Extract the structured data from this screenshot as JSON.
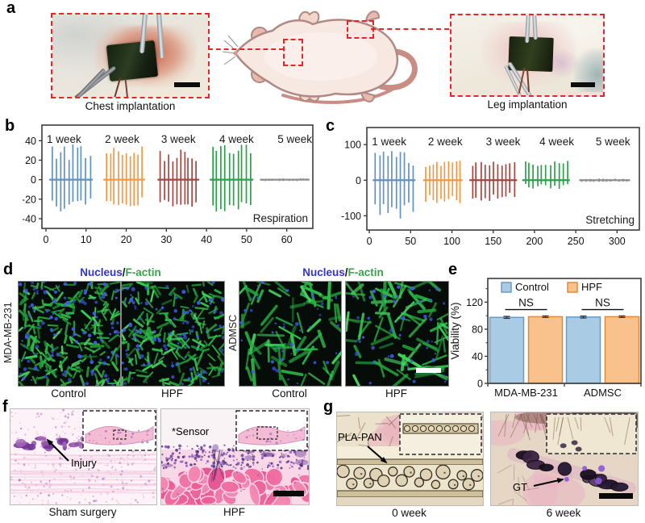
{
  "panels": {
    "a": {
      "label": "a",
      "chest_caption": "Chest implantation",
      "leg_caption": "Leg implantation"
    },
    "b": {
      "label": "b"
    },
    "c": {
      "label": "c"
    },
    "d": {
      "label": "d",
      "stain_title": {
        "nucleus": "Nucleus",
        "slash": "/",
        "factin": "F-actin"
      },
      "colors": {
        "nucleus": "#3434cc",
        "factin": "#3aa34a"
      },
      "cell_line_left": "MDA-MB-231",
      "cell_line_right": "ADMSC",
      "captions": [
        "Control",
        "HPF",
        "Control",
        "HPF"
      ]
    },
    "e": {
      "label": "e"
    },
    "f": {
      "label": "f",
      "annotations": {
        "injury": "Injury",
        "sensor": "*Sensor"
      },
      "caption_left": "Sham surgery",
      "caption_right": "HPF"
    },
    "g": {
      "label": "g",
      "annotations": {
        "pla_pan": "PLA-PAN",
        "gt": "GT"
      },
      "caption_left": "0 week",
      "caption_right": "6 week"
    }
  },
  "chart_data": [
    {
      "panel": "b",
      "type": "line",
      "corner_label": "Respiration",
      "xlim": [
        -1,
        66.5
      ],
      "ylim": [
        -50,
        56
      ],
      "xticks": [
        0,
        10,
        20,
        30,
        40,
        50,
        60
      ],
      "yticks": [
        -40,
        -20,
        0,
        20,
        40
      ],
      "week_labels": [
        "1 week",
        "2 week",
        "3 week",
        "4 week",
        "5 week"
      ],
      "week_label_x": [
        4.5,
        19,
        33,
        47.5,
        62
      ],
      "series": [
        {
          "name": "1 week",
          "color": "#5e93c5",
          "x_range": [
            1,
            11.5
          ],
          "spikes": 10,
          "amp_up": [
            20,
            38
          ],
          "amp_down": [
            18,
            34
          ]
        },
        {
          "name": "2 week",
          "color": "#f5983f",
          "x_range": [
            14.5,
            24.5
          ],
          "spikes": 10,
          "amp_up": [
            24,
            34
          ],
          "amp_down": [
            18,
            28
          ]
        },
        {
          "name": "3 week",
          "color": "#a8453f",
          "x_range": [
            28,
            38
          ],
          "spikes": 10,
          "amp_up": [
            18,
            33
          ],
          "amp_down": [
            20,
            30
          ]
        },
        {
          "name": "4 week",
          "color": "#27a348",
          "x_range": [
            41,
            51.5
          ],
          "spikes": 10,
          "amp_up": [
            26,
            38
          ],
          "amp_down": [
            22,
            33
          ]
        },
        {
          "name": "5 week",
          "color": "#8f8f8f",
          "x_range": [
            53.5,
            65.5
          ],
          "spikes": 14,
          "amp_up": [
            0.5,
            1.5
          ],
          "amp_down": [
            0.5,
            1.5
          ]
        }
      ]
    },
    {
      "panel": "c",
      "type": "line",
      "corner_label": "Stretching",
      "xlim": [
        -3,
        327
      ],
      "ylim": [
        -140,
        148
      ],
      "xticks": [
        0,
        50,
        100,
        150,
        200,
        250,
        300
      ],
      "yticks": [
        -100,
        0,
        100
      ],
      "week_labels": [
        "1 week",
        "2 week",
        "3 week",
        "4 week",
        "5 week"
      ],
      "week_label_x": [
        24,
        92,
        162,
        227,
        295
      ],
      "series": [
        {
          "name": "1 week",
          "color": "#5e93c5",
          "x_range": [
            5,
            55
          ],
          "spikes": 10,
          "amp_up": [
            30,
            85
          ],
          "amp_down": [
            60,
            115
          ]
        },
        {
          "name": "2 week",
          "color": "#f5983f",
          "x_range": [
            66,
            112
          ],
          "spikes": 10,
          "amp_up": [
            35,
            65
          ],
          "amp_down": [
            40,
            65
          ]
        },
        {
          "name": "3 week",
          "color": "#a8453f",
          "x_range": [
            122,
            178
          ],
          "spikes": 11,
          "amp_up": [
            40,
            55
          ],
          "amp_down": [
            30,
            60
          ]
        },
        {
          "name": "4 week",
          "color": "#27a348",
          "x_range": [
            186,
            242
          ],
          "spikes": 11,
          "amp_up": [
            40,
            55
          ],
          "amp_down": [
            10,
            25
          ]
        },
        {
          "name": "5 week",
          "color": "#8f8f8f",
          "x_range": [
            255,
            315
          ],
          "spikes": 12,
          "amp_up": [
            2,
            5
          ],
          "amp_down": [
            2,
            5
          ]
        }
      ]
    },
    {
      "panel": "e",
      "type": "bar",
      "ylabel": "Viability (%)",
      "categories": [
        "MDA-MB-231",
        "ADMSC"
      ],
      "series": [
        {
          "name": "Control",
          "fill": "#a9cbe4",
          "stroke": "#6b9ac2",
          "values": [
            97.5,
            98
          ],
          "errors": [
            1.5,
            1.5
          ]
        },
        {
          "name": "HPF",
          "fill": "#f9c18b",
          "stroke": "#e08a3c",
          "values": [
            98.5,
            98.5
          ],
          "errors": [
            1.2,
            1.2
          ]
        }
      ],
      "ylim": [
        0,
        155
      ],
      "yticks": [
        0,
        40,
        80,
        120
      ],
      "minor_yticks": [
        20,
        60,
        100,
        140
      ],
      "significance": [
        "NS",
        "NS"
      ],
      "legend_position": "top"
    }
  ]
}
